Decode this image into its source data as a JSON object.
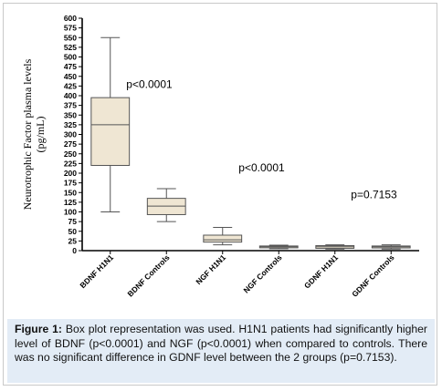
{
  "chart_data": {
    "type": "box",
    "ylabel": "Neurotrophic Factor plasma levels (pg/mL)",
    "ylabel_lines": [
      "Neurotrophic Factor plasma levels",
      "(pg/mL)"
    ],
    "ylim": [
      0,
      600
    ],
    "yticks": [
      0,
      25,
      50,
      75,
      100,
      125,
      150,
      175,
      200,
      225,
      250,
      275,
      300,
      325,
      350,
      375,
      400,
      425,
      450,
      475,
      500,
      525,
      550,
      575,
      600
    ],
    "categories": [
      "BDNF H1N1",
      "BDNF Controls",
      "NGF H1N1",
      "NGF Controls",
      "GDNF H1N1",
      "GDNF Controls"
    ],
    "boxes": [
      {
        "category": "BDNF H1N1",
        "min": 100,
        "q1": 220,
        "median": 325,
        "q3": 395,
        "max": 550
      },
      {
        "category": "BDNF Controls",
        "min": 75,
        "q1": 93,
        "median": 115,
        "q3": 135,
        "max": 160
      },
      {
        "category": "NGF H1N1",
        "min": 15,
        "q1": 22,
        "median": 28,
        "q3": 40,
        "max": 60
      },
      {
        "category": "NGF Controls",
        "min": 5,
        "q1": 8,
        "median": 10,
        "q3": 12,
        "max": 14
      },
      {
        "category": "GDNF H1N1",
        "min": 4,
        "q1": 6,
        "median": 10,
        "q3": 13,
        "max": 15
      },
      {
        "category": "GDNF Controls",
        "min": 4,
        "q1": 7,
        "median": 10,
        "q3": 12,
        "max": 15
      }
    ],
    "annotations": [
      {
        "text": "p<0.0001",
        "pair": "BDNF",
        "value": 420
      },
      {
        "text": "p<0.0001",
        "pair": "NGF",
        "value": 205
      },
      {
        "text": "p=0.7153",
        "pair": "GDNF",
        "value": 135
      }
    ],
    "grid": false,
    "colors": {
      "box_fill": "#efe6d3",
      "box_stroke": "#555555",
      "axis": "#000000"
    }
  },
  "caption": {
    "label": "Figure 1:",
    "text": "Box plot representation was used. H1N1 patients had significantly higher level of BDNF (p<0.0001) and NGF (p<0.0001) when compared to controls. There was no significant difference in GDNF level between the 2 groups (p=0.7153)."
  },
  "colors": {
    "caption_bg": "#e3ecf6"
  }
}
